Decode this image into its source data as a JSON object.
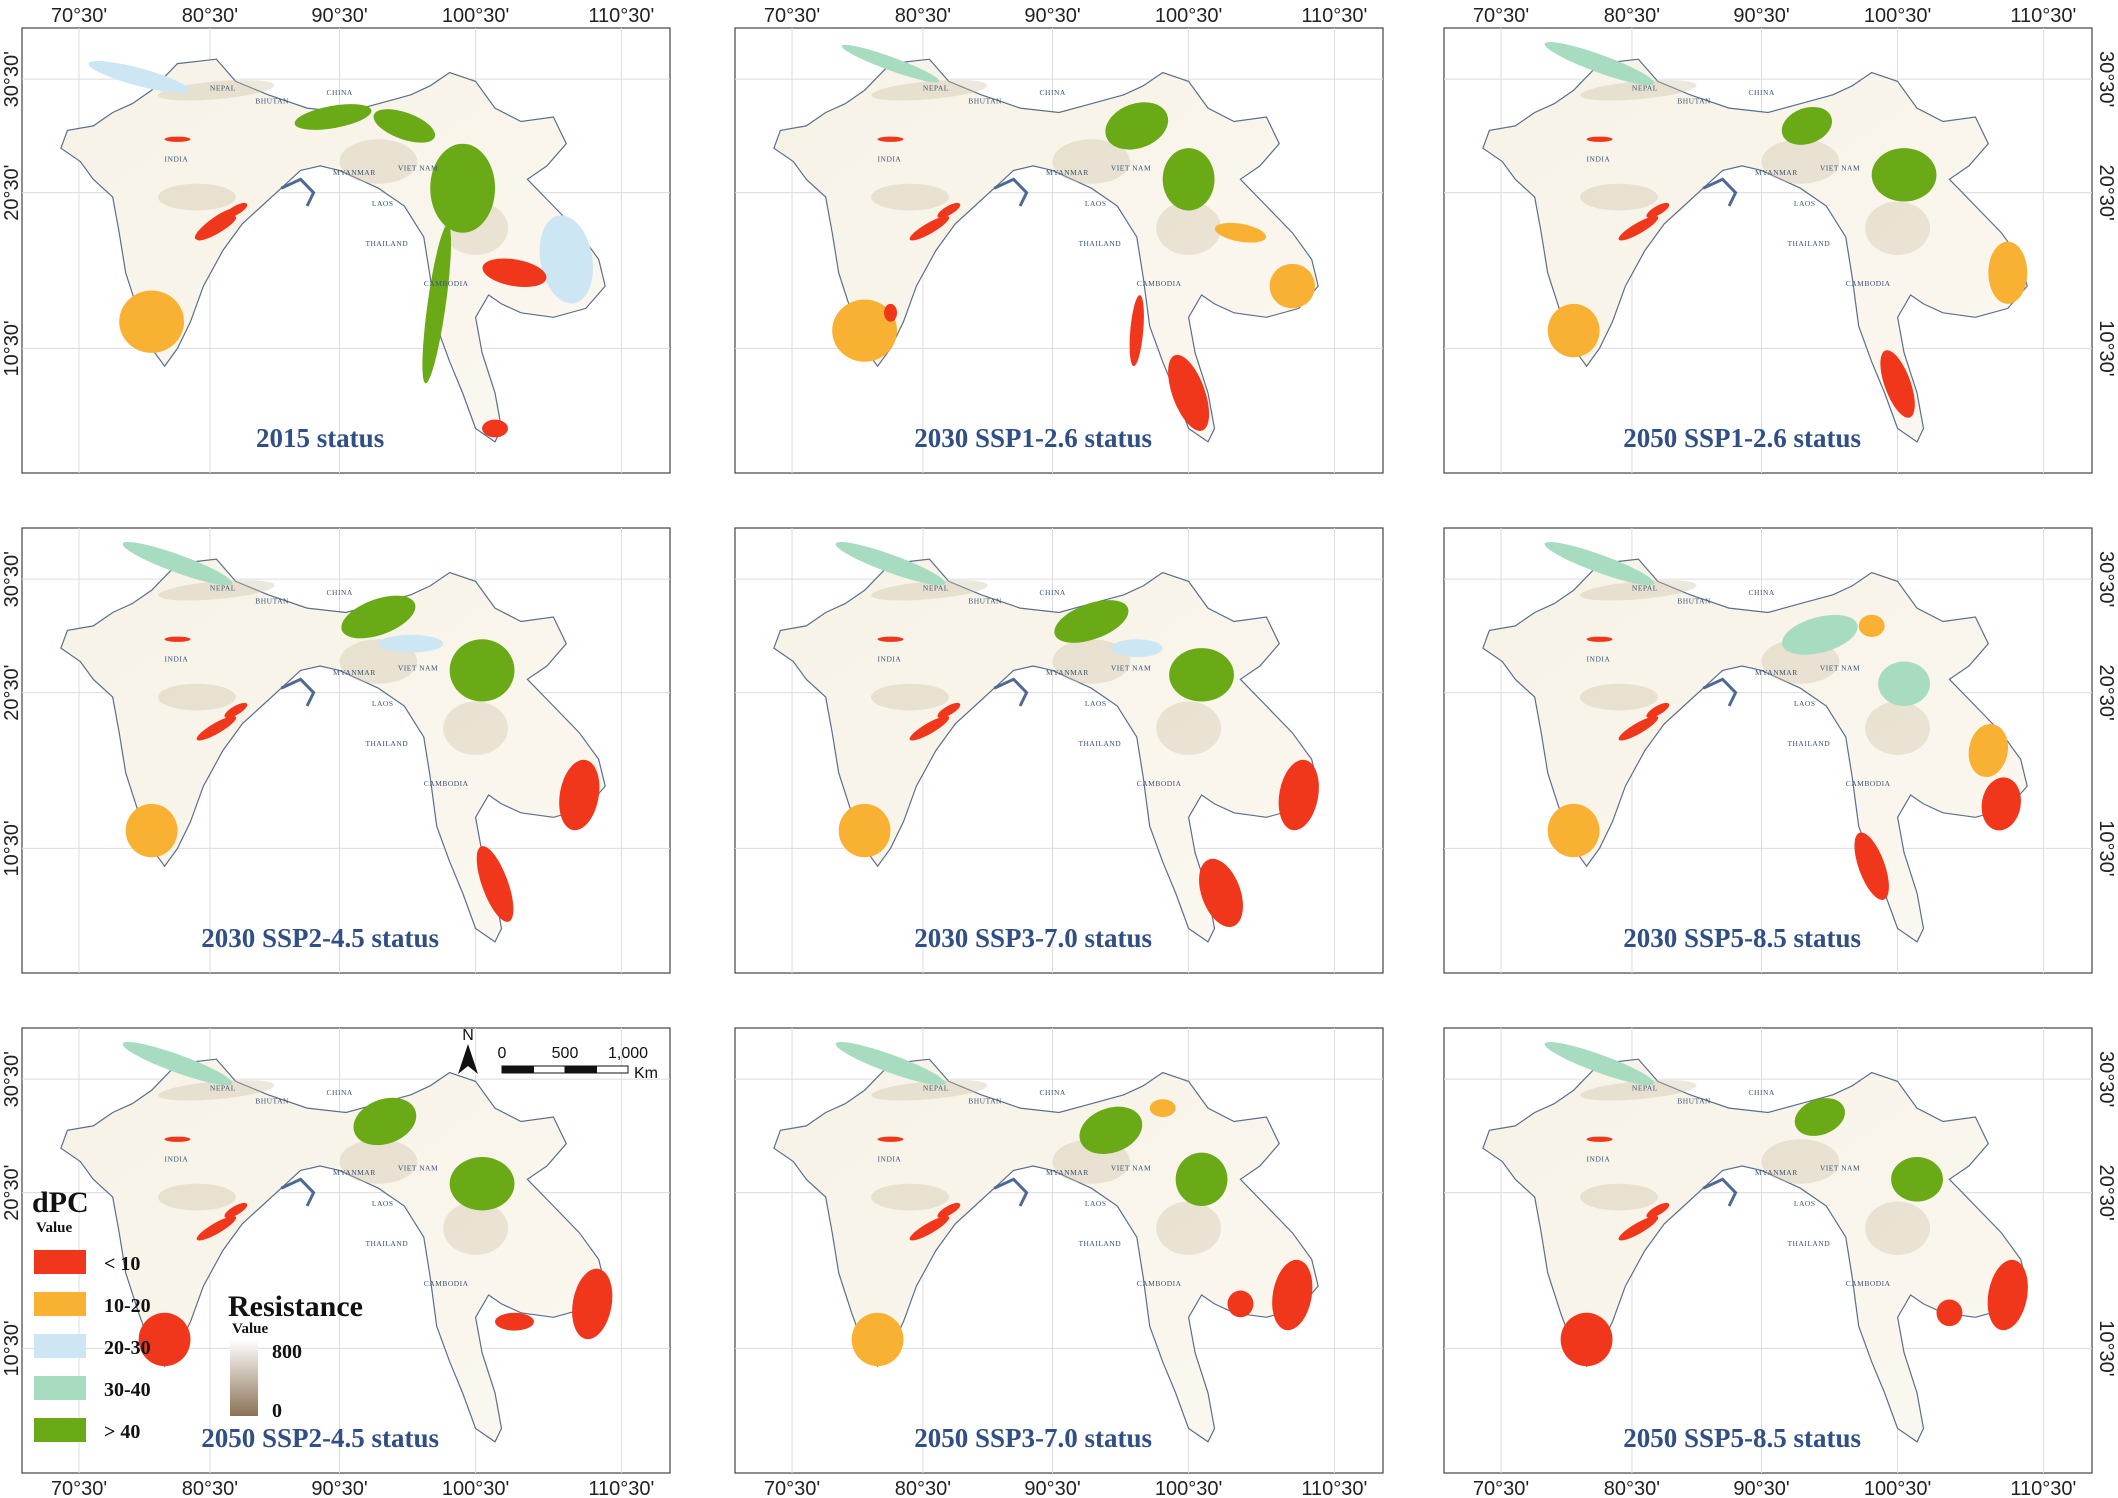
{
  "figure": {
    "panels": [
      {
        "title": "2015 status"
      },
      {
        "title": "2030 SSP1-2.6 status"
      },
      {
        "title": "2050 SSP1-2.6 status"
      },
      {
        "title": "2030 SSP2-4.5 status"
      },
      {
        "title": "2030 SSP3-7.0 status"
      },
      {
        "title": "2030 SSP5-8.5 status"
      },
      {
        "title": "2050 SSP2-4.5 status"
      },
      {
        "title": "2050 SSP3-7.0 status"
      },
      {
        "title": "2050 SSP5-8.5 status"
      }
    ],
    "lon_labels": [
      "70°30'",
      "80°30'",
      "90°30'",
      "100°30'",
      "110°30'"
    ],
    "lat_labels": [
      "30°30'",
      "20°30'",
      "10°30'"
    ],
    "country_labels": [
      "NEPAL",
      "BHUTAN",
      "CHINA",
      "INDIA",
      "MYANMAR",
      "VIET NAM",
      "LAOS",
      "THAILAND",
      "CAMBODIA"
    ]
  },
  "legend_dpc": {
    "title": "dPC",
    "subtitle": "Value",
    "items": [
      {
        "label": "< 10",
        "color": "#f0371b"
      },
      {
        "label": "10-20",
        "color": "#f8b133"
      },
      {
        "label": "20-30",
        "color": "#cde6f3"
      },
      {
        "label": "30-40",
        "color": "#a8dcc0"
      },
      {
        "label": "> 40",
        "color": "#6aaa16"
      }
    ]
  },
  "legend_resistance": {
    "title": "Resistance",
    "subtitle": "Value",
    "max": "800",
    "min": "0",
    "color_high": "#ffffff",
    "color_low": "#8a7256"
  },
  "scale_bar": {
    "north": "N",
    "labels": [
      "0",
      "500",
      "1,000"
    ],
    "unit": "Km"
  }
}
